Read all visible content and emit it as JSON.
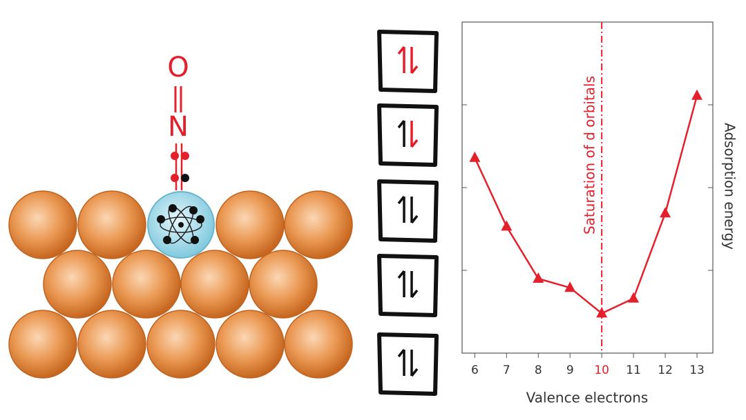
{
  "diagram": {
    "atoms": [
      "O",
      "N"
    ]
  },
  "chart_data": {
    "type": "line",
    "xlabel": "Valence electrons",
    "ylabel": "Adsorption energy",
    "x": [
      6,
      7,
      8,
      9,
      10,
      11,
      12,
      13
    ],
    "values": [
      2.36,
      1.53,
      0.9,
      0.79,
      0.48,
      0.66,
      1.69,
      3.11
    ],
    "color": "#e3202b",
    "xlim": [
      5.6,
      13.5
    ],
    "xticks": [
      6,
      7,
      8,
      9,
      10,
      11,
      12,
      13
    ],
    "ylim": [
      0,
      4
    ],
    "yticks": [
      1,
      2,
      3
    ],
    "vline": {
      "x": 10,
      "label": "Saturation of d orbitals",
      "color": "#e3202b"
    }
  }
}
